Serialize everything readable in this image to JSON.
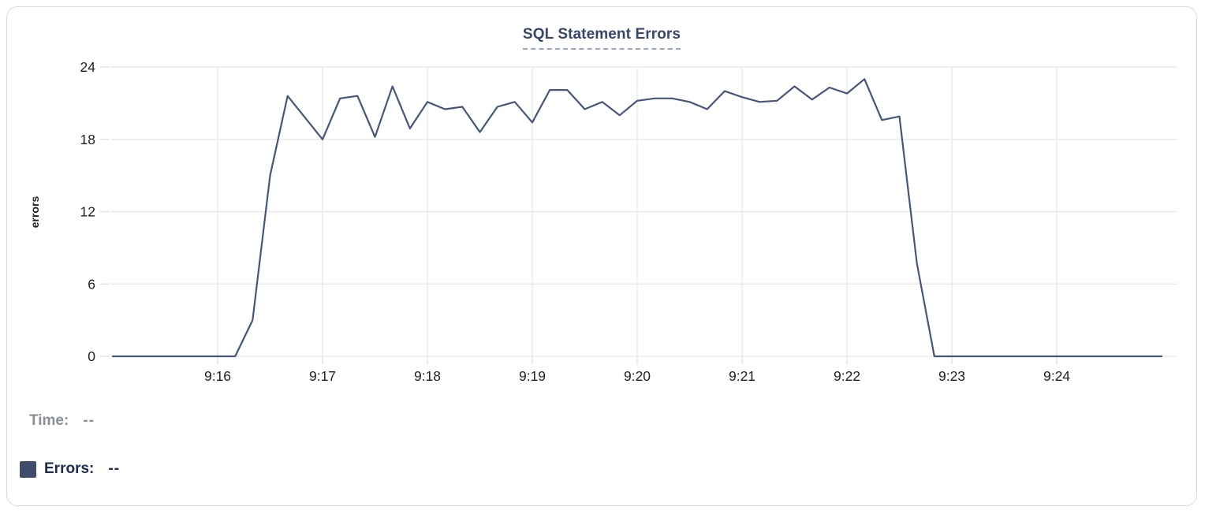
{
  "card": {
    "title": "SQL Statement Errors"
  },
  "chart_data": {
    "type": "line",
    "title": "SQL Statement Errors",
    "xlabel": "",
    "ylabel": "errors",
    "ylim": [
      0,
      24
    ],
    "ytick_values": [
      0,
      6,
      12,
      18,
      24
    ],
    "xtick_labels": [
      "9:16",
      "9:17",
      "9:18",
      "9:19",
      "9:20",
      "9:21",
      "9:22",
      "9:23",
      "9:24"
    ],
    "xtick_seconds": [
      60,
      120,
      180,
      240,
      300,
      360,
      420,
      480,
      540
    ],
    "x_range_seconds": [
      0,
      600
    ],
    "grid": true,
    "legend_position": "none",
    "x": [
      "9:15:00",
      "9:15:10",
      "9:15:20",
      "9:15:30",
      "9:15:40",
      "9:15:50",
      "9:16:00",
      "9:16:10",
      "9:16:20",
      "9:16:30",
      "9:16:40",
      "9:16:50",
      "9:17:00",
      "9:17:10",
      "9:17:20",
      "9:17:30",
      "9:17:40",
      "9:17:50",
      "9:18:00",
      "9:18:10",
      "9:18:20",
      "9:18:30",
      "9:18:40",
      "9:18:50",
      "9:19:00",
      "9:19:10",
      "9:19:20",
      "9:19:30",
      "9:19:40",
      "9:19:50",
      "9:20:00",
      "9:20:10",
      "9:20:20",
      "9:20:30",
      "9:20:40",
      "9:20:50",
      "9:21:00",
      "9:21:10",
      "9:21:20",
      "9:21:30",
      "9:21:40",
      "9:21:50",
      "9:22:00",
      "9:22:10",
      "9:22:20",
      "9:22:30",
      "9:22:40",
      "9:22:50",
      "9:23:00",
      "9:23:10",
      "9:23:20",
      "9:23:30",
      "9:23:40",
      "9:23:50",
      "9:24:00",
      "9:24:10",
      "9:24:20",
      "9:24:30",
      "9:24:40",
      "9:24:50",
      "9:25:00"
    ],
    "series": [
      {
        "name": "Errors",
        "color": "#46567a",
        "values": [
          0,
          0,
          0,
          0,
          0,
          0,
          0,
          0,
          3,
          15,
          21.6,
          19.8,
          18,
          21.4,
          21.6,
          18.2,
          22.4,
          18.9,
          21.1,
          20.5,
          20.7,
          18.6,
          20.7,
          21.1,
          19.4,
          22.1,
          22.1,
          20.5,
          21.1,
          20.0,
          21.2,
          21.4,
          21.4,
          21.1,
          20.5,
          22.0,
          21.5,
          21.1,
          21.2,
          22.4,
          21.3,
          22.3,
          21.8,
          23.0,
          19.6,
          19.9,
          7.7,
          0,
          0,
          0,
          0,
          0,
          0,
          0,
          0,
          0,
          0,
          0,
          0,
          0,
          0
        ]
      }
    ]
  },
  "footer": {
    "time": {
      "label": "Time:",
      "value": "--"
    },
    "errors": {
      "label": "Errors:",
      "value": "--",
      "swatch_color": "#3e4d6b"
    }
  },
  "colors": {
    "title": "#36476b",
    "title_underline": "#97a6c8",
    "line": "#46567a",
    "gridline": "#ebebeb",
    "axis_text": "#1f1f1f",
    "legend_time_text": "#8a8f96",
    "legend_errors_text": "#1e2b50",
    "card_border": "#d9dadc"
  }
}
